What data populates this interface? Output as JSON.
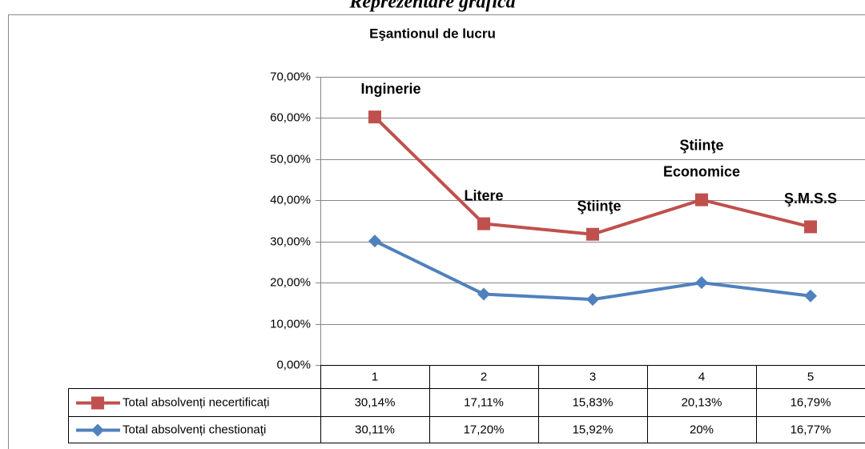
{
  "chart_data": {
    "type": "stacked_line",
    "page_title": "Reprezentare grafica",
    "title": "Eşantionul de lucru",
    "categories": [
      "1",
      "2",
      "3",
      "4",
      "5"
    ],
    "series": [
      {
        "name": "Total absolvenți necertificați",
        "color": "#c0504d",
        "marker": "square",
        "values": [
          30.14,
          17.11,
          15.83,
          20.13,
          16.79
        ],
        "value_labels": [
          "30,14%",
          "17,11%",
          "15,83%",
          "20,13%",
          "16,79%"
        ]
      },
      {
        "name": "Total absolvenți chestionaţi",
        "color": "#4f81bd",
        "marker": "diamond",
        "values": [
          30.11,
          17.2,
          15.92,
          20,
          16.77
        ],
        "value_labels": [
          "30,11%",
          "17,20%",
          "15,92%",
          "20%",
          "16,77%"
        ]
      }
    ],
    "annotations": [
      [
        "Inginerie"
      ],
      [
        "Litere"
      ],
      [
        "Ştiinţe"
      ],
      [
        "Ştiinţe",
        "Economice"
      ],
      [
        "Ş.M.S.S"
      ]
    ],
    "ylim": [
      0,
      70
    ],
    "yticks": [
      {
        "value": 0,
        "label": "0,00%"
      },
      {
        "value": 10,
        "label": "10,00%"
      },
      {
        "value": 20,
        "label": "20,00%"
      },
      {
        "value": 30,
        "label": "30,00%"
      },
      {
        "value": 40,
        "label": "40,00%"
      },
      {
        "value": 50,
        "label": "50,00%"
      },
      {
        "value": 60,
        "label": "60,00%"
      },
      {
        "value": 70,
        "label": "70,00%"
      }
    ],
    "grid": true,
    "data_table": true
  }
}
